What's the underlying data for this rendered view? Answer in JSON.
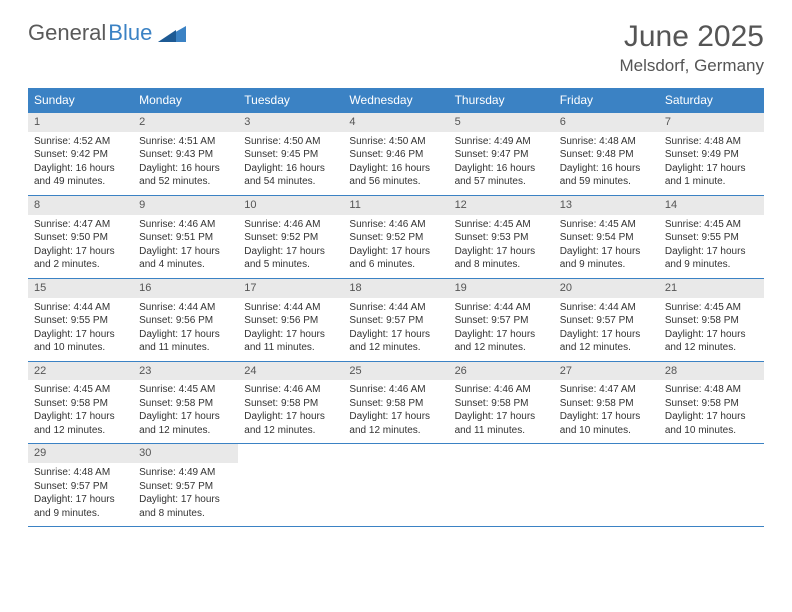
{
  "brand": {
    "part1": "General",
    "part2": "Blue"
  },
  "title": "June 2025",
  "location": "Melsdorf, Germany",
  "colors": {
    "header_bg": "#3b82c4",
    "daynum_bg": "#e9e9e9",
    "text": "#333333",
    "title_text": "#555555"
  },
  "weekdays": [
    "Sunday",
    "Monday",
    "Tuesday",
    "Wednesday",
    "Thursday",
    "Friday",
    "Saturday"
  ],
  "weeks": [
    [
      {
        "n": "1",
        "sunrise": "4:52 AM",
        "sunset": "9:42 PM",
        "daylight": "16 hours and 49 minutes."
      },
      {
        "n": "2",
        "sunrise": "4:51 AM",
        "sunset": "9:43 PM",
        "daylight": "16 hours and 52 minutes."
      },
      {
        "n": "3",
        "sunrise": "4:50 AM",
        "sunset": "9:45 PM",
        "daylight": "16 hours and 54 minutes."
      },
      {
        "n": "4",
        "sunrise": "4:50 AM",
        "sunset": "9:46 PM",
        "daylight": "16 hours and 56 minutes."
      },
      {
        "n": "5",
        "sunrise": "4:49 AM",
        "sunset": "9:47 PM",
        "daylight": "16 hours and 57 minutes."
      },
      {
        "n": "6",
        "sunrise": "4:48 AM",
        "sunset": "9:48 PM",
        "daylight": "16 hours and 59 minutes."
      },
      {
        "n": "7",
        "sunrise": "4:48 AM",
        "sunset": "9:49 PM",
        "daylight": "17 hours and 1 minute."
      }
    ],
    [
      {
        "n": "8",
        "sunrise": "4:47 AM",
        "sunset": "9:50 PM",
        "daylight": "17 hours and 2 minutes."
      },
      {
        "n": "9",
        "sunrise": "4:46 AM",
        "sunset": "9:51 PM",
        "daylight": "17 hours and 4 minutes."
      },
      {
        "n": "10",
        "sunrise": "4:46 AM",
        "sunset": "9:52 PM",
        "daylight": "17 hours and 5 minutes."
      },
      {
        "n": "11",
        "sunrise": "4:46 AM",
        "sunset": "9:52 PM",
        "daylight": "17 hours and 6 minutes."
      },
      {
        "n": "12",
        "sunrise": "4:45 AM",
        "sunset": "9:53 PM",
        "daylight": "17 hours and 8 minutes."
      },
      {
        "n": "13",
        "sunrise": "4:45 AM",
        "sunset": "9:54 PM",
        "daylight": "17 hours and 9 minutes."
      },
      {
        "n": "14",
        "sunrise": "4:45 AM",
        "sunset": "9:55 PM",
        "daylight": "17 hours and 9 minutes."
      }
    ],
    [
      {
        "n": "15",
        "sunrise": "4:44 AM",
        "sunset": "9:55 PM",
        "daylight": "17 hours and 10 minutes."
      },
      {
        "n": "16",
        "sunrise": "4:44 AM",
        "sunset": "9:56 PM",
        "daylight": "17 hours and 11 minutes."
      },
      {
        "n": "17",
        "sunrise": "4:44 AM",
        "sunset": "9:56 PM",
        "daylight": "17 hours and 11 minutes."
      },
      {
        "n": "18",
        "sunrise": "4:44 AM",
        "sunset": "9:57 PM",
        "daylight": "17 hours and 12 minutes."
      },
      {
        "n": "19",
        "sunrise": "4:44 AM",
        "sunset": "9:57 PM",
        "daylight": "17 hours and 12 minutes."
      },
      {
        "n": "20",
        "sunrise": "4:44 AM",
        "sunset": "9:57 PM",
        "daylight": "17 hours and 12 minutes."
      },
      {
        "n": "21",
        "sunrise": "4:45 AM",
        "sunset": "9:58 PM",
        "daylight": "17 hours and 12 minutes."
      }
    ],
    [
      {
        "n": "22",
        "sunrise": "4:45 AM",
        "sunset": "9:58 PM",
        "daylight": "17 hours and 12 minutes."
      },
      {
        "n": "23",
        "sunrise": "4:45 AM",
        "sunset": "9:58 PM",
        "daylight": "17 hours and 12 minutes."
      },
      {
        "n": "24",
        "sunrise": "4:46 AM",
        "sunset": "9:58 PM",
        "daylight": "17 hours and 12 minutes."
      },
      {
        "n": "25",
        "sunrise": "4:46 AM",
        "sunset": "9:58 PM",
        "daylight": "17 hours and 12 minutes."
      },
      {
        "n": "26",
        "sunrise": "4:46 AM",
        "sunset": "9:58 PM",
        "daylight": "17 hours and 11 minutes."
      },
      {
        "n": "27",
        "sunrise": "4:47 AM",
        "sunset": "9:58 PM",
        "daylight": "17 hours and 10 minutes."
      },
      {
        "n": "28",
        "sunrise": "4:48 AM",
        "sunset": "9:58 PM",
        "daylight": "17 hours and 10 minutes."
      }
    ],
    [
      {
        "n": "29",
        "sunrise": "4:48 AM",
        "sunset": "9:57 PM",
        "daylight": "17 hours and 9 minutes."
      },
      {
        "n": "30",
        "sunrise": "4:49 AM",
        "sunset": "9:57 PM",
        "daylight": "17 hours and 8 minutes."
      },
      null,
      null,
      null,
      null,
      null
    ]
  ],
  "labels": {
    "sunrise": "Sunrise: ",
    "sunset": "Sunset: ",
    "daylight": "Daylight: "
  }
}
